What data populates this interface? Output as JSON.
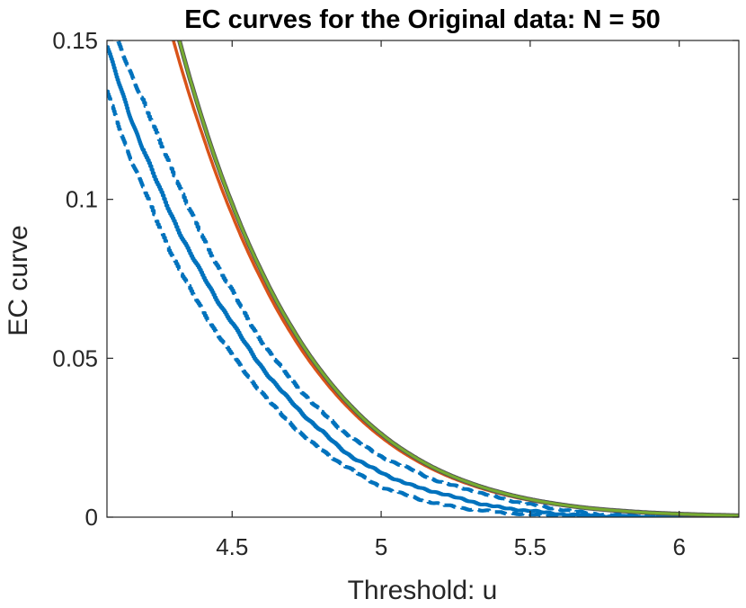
{
  "chart_data": {
    "type": "line",
    "title": "EC curves for the Original data: N = 50",
    "xlabel": "Threshold: u",
    "ylabel": "EC curve",
    "xlim": [
      4.08,
      6.2
    ],
    "ylim": [
      0,
      0.15
    ],
    "xticks": [
      4.5,
      5,
      5.5,
      6
    ],
    "xtick_labels": [
      "4.5",
      "5",
      "5.5",
      "6"
    ],
    "yticks": [
      0,
      0.05,
      0.1,
      0.15
    ],
    "ytick_labels": [
      "0",
      "0.05",
      "0.1",
      "0.15"
    ],
    "grid": false,
    "colors": {
      "blue": "#0072BD",
      "orange": "#D95319",
      "gray": "#555555",
      "green": "#77AC30",
      "axis": "#262626"
    },
    "series": [
      {
        "style": "solid",
        "color": "#0072BD",
        "width": 4,
        "jitter": true,
        "x": [
          4.08,
          4.15,
          4.2,
          4.3,
          4.4,
          4.5,
          4.6,
          4.7,
          4.8,
          4.9,
          5.0,
          5.1,
          5.2,
          5.3,
          5.4,
          5.5,
          5.6,
          5.7,
          5.8,
          6.0,
          6.2
        ],
        "y": [
          0.148,
          0.128,
          0.116,
          0.094,
          0.076,
          0.061,
          0.047,
          0.036,
          0.027,
          0.019,
          0.014,
          0.01,
          0.0075,
          0.005,
          0.003,
          0.002,
          0.001,
          0.0005,
          0.0002,
          0.0,
          0.0
        ]
      },
      {
        "style": "dashed",
        "color": "#0072BD",
        "width": 4,
        "jitter": true,
        "x": [
          4.08,
          4.15,
          4.2,
          4.3,
          4.4,
          4.5,
          4.6,
          4.7,
          4.8,
          4.9,
          5.0,
          5.1,
          5.2,
          5.3,
          5.4,
          5.5,
          5.6,
          5.7,
          5.8,
          6.0,
          6.2
        ],
        "y": [
          0.158,
          0.142,
          0.131,
          0.109,
          0.088,
          0.071,
          0.055,
          0.043,
          0.033,
          0.025,
          0.019,
          0.015,
          0.011,
          0.0085,
          0.006,
          0.004,
          0.0025,
          0.0012,
          0.0006,
          0.0,
          0.0
        ]
      },
      {
        "style": "dashed",
        "color": "#0072BD",
        "width": 4,
        "jitter": true,
        "x": [
          4.08,
          4.15,
          4.2,
          4.3,
          4.4,
          4.5,
          4.6,
          4.7,
          4.8,
          4.9,
          5.0,
          5.1,
          5.2,
          5.3,
          5.4,
          5.5,
          5.6,
          5.7,
          5.8,
          6.0,
          6.2
        ],
        "y": [
          0.134,
          0.115,
          0.104,
          0.082,
          0.065,
          0.051,
          0.039,
          0.029,
          0.021,
          0.015,
          0.0095,
          0.0065,
          0.004,
          0.0025,
          0.0015,
          0.0008,
          0.0003,
          0.0,
          0.0,
          0.0,
          0.0
        ]
      },
      {
        "style": "solid",
        "color": "#D95319",
        "width": 3.5,
        "jitter": false,
        "x": [
          4.3,
          4.4,
          4.5,
          4.6,
          4.7,
          4.8,
          4.9,
          5.0,
          5.1,
          5.2,
          5.3,
          5.4,
          5.5,
          5.6,
          5.7,
          5.8,
          5.9,
          6.0,
          6.1,
          6.2
        ],
        "y": [
          0.151,
          0.1205,
          0.0951,
          0.0744,
          0.0575,
          0.0441,
          0.0335,
          0.0252,
          0.0188,
          0.0139,
          0.0102,
          0.0074,
          0.0053,
          0.0038,
          0.0027,
          0.0019,
          0.0013,
          0.0009,
          0.0006,
          0.0004
        ]
      },
      {
        "style": "solid",
        "color": "#555555",
        "width": 5,
        "jitter": false,
        "x": [
          4.32,
          4.4,
          4.5,
          4.6,
          4.7,
          4.8,
          4.9,
          5.0,
          5.1,
          5.2,
          5.3,
          5.4,
          5.5,
          5.6,
          5.7,
          5.8,
          5.9,
          6.0,
          6.1,
          6.2
        ],
        "y": [
          0.151,
          0.1252,
          0.0986,
          0.0771,
          0.0597,
          0.0458,
          0.0348,
          0.0262,
          0.0196,
          0.0145,
          0.0107,
          0.0078,
          0.0056,
          0.004,
          0.0028,
          0.002,
          0.0014,
          0.001,
          0.0007,
          0.0005
        ]
      },
      {
        "style": "solid",
        "color": "#77AC30",
        "width": 3,
        "jitter": false,
        "x": [
          4.32,
          4.4,
          4.5,
          4.6,
          4.7,
          4.8,
          4.9,
          5.0,
          5.1,
          5.2,
          5.3,
          5.4,
          5.5,
          5.6,
          5.7,
          5.8,
          5.9,
          6.0,
          6.1,
          6.2
        ],
        "y": [
          0.151,
          0.1252,
          0.0986,
          0.0771,
          0.0597,
          0.0458,
          0.0348,
          0.0262,
          0.0196,
          0.0145,
          0.0107,
          0.0078,
          0.0056,
          0.004,
          0.0028,
          0.002,
          0.0014,
          0.001,
          0.0007,
          0.0005
        ]
      }
    ]
  }
}
